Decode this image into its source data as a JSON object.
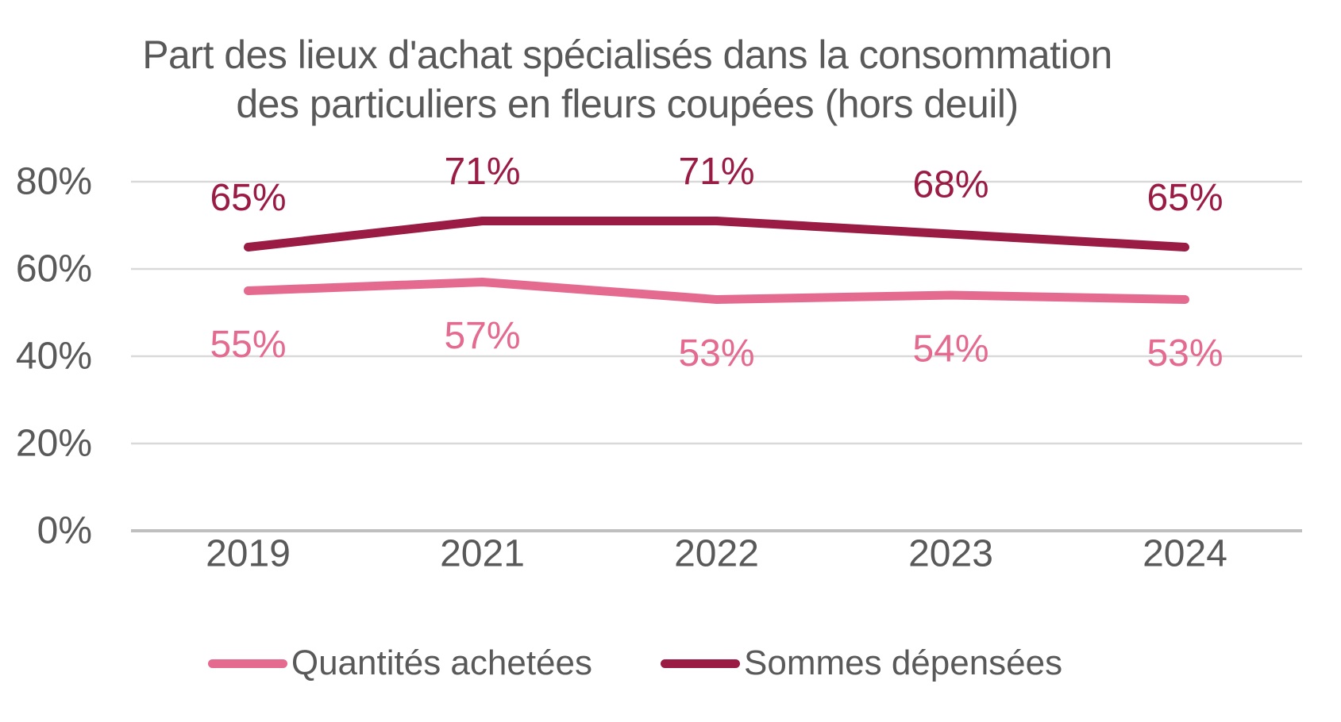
{
  "chart_data": {
    "type": "line",
    "title": "Part des lieux d'achat spécialisés dans la consommation des particuliers en fleurs coupées (hors deuil)",
    "title_lines": [
      "Part des lieux d'achat spécialisés dans la consommation",
      "des particuliers en fleurs coupées (hors deuil)"
    ],
    "categories": [
      "2019",
      "2021",
      "2022",
      "2023",
      "2024"
    ],
    "series": [
      {
        "name": "Quantités achetées",
        "color": "#E46A90",
        "values": [
          55,
          57,
          53,
          54,
          53
        ],
        "labels": [
          "55%",
          "57%",
          "53%",
          "54%",
          "53%"
        ],
        "label_position": "below"
      },
      {
        "name": "Sommes dépensées",
        "color": "#9A1B43",
        "values": [
          65,
          71,
          71,
          68,
          65
        ],
        "labels": [
          "65%",
          "71%",
          "71%",
          "68%",
          "65%"
        ],
        "label_position": "above"
      }
    ],
    "y_axis": {
      "tick_labels": [
        "0%",
        "20%",
        "40%",
        "60%",
        "80%"
      ],
      "tick_values": [
        0,
        20,
        40,
        60,
        80
      ],
      "min": 0,
      "max": 80,
      "unit": "%"
    },
    "grid": true,
    "legend_position": "bottom",
    "colors": {
      "text_gray": "#595959",
      "gridline": "#D9D9D9",
      "axis_line": "#BFBFBF"
    }
  },
  "legend": {
    "items": [
      {
        "label": "Quantités achetées"
      },
      {
        "label": "Sommes dépensées"
      }
    ]
  }
}
